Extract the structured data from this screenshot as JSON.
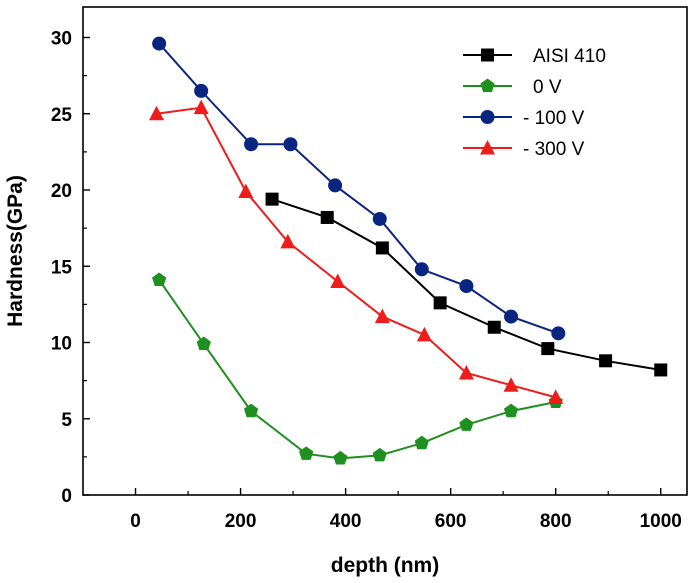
{
  "chart_data": {
    "type": "line",
    "xlabel": "depth (nm)",
    "ylabel": "Hardness(GPa)",
    "xlim": [
      -100,
      1050
    ],
    "ylim": [
      0,
      32
    ],
    "xticks": [
      0,
      200,
      400,
      600,
      800,
      1000
    ],
    "yticks": [
      0,
      5,
      10,
      15,
      20,
      25,
      30
    ],
    "legend_position": "top-right",
    "grid": false,
    "series": [
      {
        "name": "AISI 410",
        "color": "#000000",
        "marker": "square",
        "x": [
          260,
          365,
          470,
          580,
          683,
          785,
          895,
          1000
        ],
        "y": [
          19.4,
          18.2,
          16.2,
          12.6,
          11.0,
          9.6,
          8.8,
          8.2
        ]
      },
      {
        "name": "0 V",
        "color": "#1f8f1f",
        "marker": "pentagon",
        "x": [
          45,
          130,
          220,
          325,
          390,
          465,
          545,
          630,
          715,
          800
        ],
        "y": [
          14.1,
          9.9,
          5.5,
          2.7,
          2.4,
          2.6,
          3.4,
          4.6,
          5.5,
          6.1
        ]
      },
      {
        "name": "- 100 V",
        "color": "#0a2580",
        "marker": "circle",
        "x": [
          45,
          125,
          220,
          295,
          380,
          465,
          545,
          630,
          715,
          805
        ],
        "y": [
          29.6,
          26.5,
          23.0,
          23.0,
          20.3,
          18.1,
          14.8,
          13.7,
          11.7,
          10.6
        ]
      },
      {
        "name": "- 300 V",
        "color": "#ef1c1c",
        "marker": "triangle",
        "x": [
          40,
          125,
          210,
          290,
          385,
          470,
          550,
          630,
          715,
          800
        ],
        "y": [
          25.0,
          25.4,
          19.9,
          16.6,
          14.0,
          11.7,
          10.5,
          8.0,
          7.2,
          6.4
        ]
      }
    ]
  }
}
